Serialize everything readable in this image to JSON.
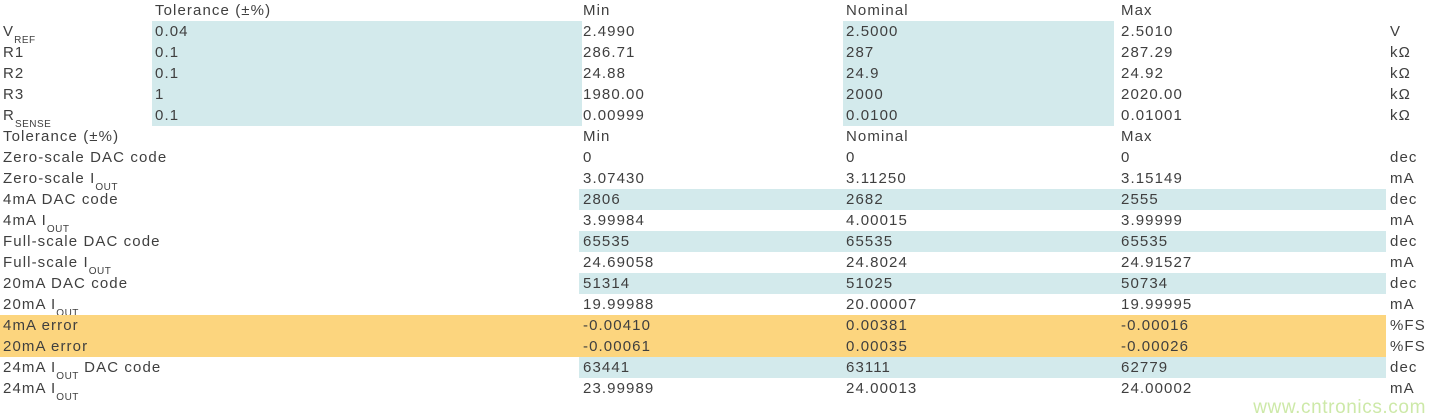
{
  "colors": {
    "highlight_blue": "#d3eaec",
    "highlight_orange": "#fcd57e",
    "text": "#3f3f3f",
    "watermark_green": "#cde9a8"
  },
  "watermark": {
    "text": "www.cntronics.com"
  },
  "table": {
    "column_headers": [
      "",
      "Tolerance (±%)",
      "Min",
      "Nominal",
      "Max",
      ""
    ],
    "rows": [
      {
        "label": "",
        "tol": "Tolerance (±%)",
        "min": "Min",
        "nom": "Nominal",
        "max": "Max",
        "unit": "",
        "hl": "none"
      },
      {
        "label": "V~REF~",
        "tol": "0.04",
        "min": "2.4990",
        "nom": "2.5000",
        "max": "2.5010",
        "unit": "V",
        "hl": "tol-nom"
      },
      {
        "label": "R1",
        "tol": "0.1",
        "min": "286.71",
        "nom": "287",
        "max": "287.29",
        "unit": "kΩ",
        "hl": "tol-nom"
      },
      {
        "label": "R2",
        "tol": "0.1",
        "min": "24.88",
        "nom": "24.9",
        "max": "24.92",
        "unit": "kΩ",
        "hl": "tol-nom"
      },
      {
        "label": "R3",
        "tol": "1",
        "min": "1980.00",
        "nom": "2000",
        "max": "2020.00",
        "unit": "kΩ",
        "hl": "tol-nom"
      },
      {
        "label": "R~SENSE~",
        "tol": "0.1",
        "min": "0.00999",
        "nom": "0.0100",
        "max": "0.01001",
        "unit": "kΩ",
        "hl": "tol-nom"
      },
      {
        "label": "Tolerance (±%)",
        "tol": "",
        "min": "Min",
        "nom": "Nominal",
        "max": "Max",
        "unit": "",
        "hl": "none"
      },
      {
        "label": "Zero-scale DAC code",
        "tol": "",
        "min": "0",
        "nom": "0",
        "max": "0",
        "unit": "dec",
        "hl": "none"
      },
      {
        "label": "Zero-scale I~OUT~",
        "tol": "",
        "min": "3.07430",
        "nom": "3.11250",
        "max": "3.15149",
        "unit": "mA",
        "hl": "none"
      },
      {
        "label": "4mA DAC code",
        "tol": "",
        "min": "2806",
        "nom": "2682",
        "max": "2555",
        "unit": "dec",
        "hl": "data"
      },
      {
        "label": "4mA I~OUT~",
        "tol": "",
        "min": "3.99984",
        "nom": "4.00015",
        "max": "3.99999",
        "unit": "mA",
        "hl": "none"
      },
      {
        "label": "Full-scale DAC code",
        "tol": "",
        "min": "65535",
        "nom": "65535",
        "max": "65535",
        "unit": "dec",
        "hl": "data"
      },
      {
        "label": "Full-scale I~OUT~",
        "tol": "",
        "min": "24.69058",
        "nom": "24.8024",
        "max": "24.91527",
        "unit": "mA",
        "hl": "none"
      },
      {
        "label": "20mA DAC code",
        "tol": "",
        "min": "51314",
        "nom": "51025",
        "max": "50734",
        "unit": "dec",
        "hl": "data"
      },
      {
        "label": "20mA I~OUT~",
        "tol": "",
        "min": "19.99988",
        "nom": "20.00007",
        "max": "19.99995",
        "unit": "mA",
        "hl": "none"
      },
      {
        "label": "4mA error",
        "tol": "",
        "min": "-0.00410",
        "nom": "0.00381",
        "max": "-0.00016",
        "unit": "%FS",
        "hl": "error"
      },
      {
        "label": "20mA error",
        "tol": "",
        "min": "-0.00061",
        "nom": "0.00035",
        "max": "-0.00026",
        "unit": "%FS",
        "hl": "error"
      },
      {
        "label": "24mA I~OUT~ DAC code",
        "tol": "",
        "min": "63441",
        "nom": "63111",
        "max": "62779",
        "unit": "dec",
        "hl": "data"
      },
      {
        "label": "24mA I~OUT~",
        "tol": "",
        "min": "23.99989",
        "nom": "24.00013",
        "max": "24.00002",
        "unit": "mA",
        "hl": "none"
      }
    ]
  }
}
